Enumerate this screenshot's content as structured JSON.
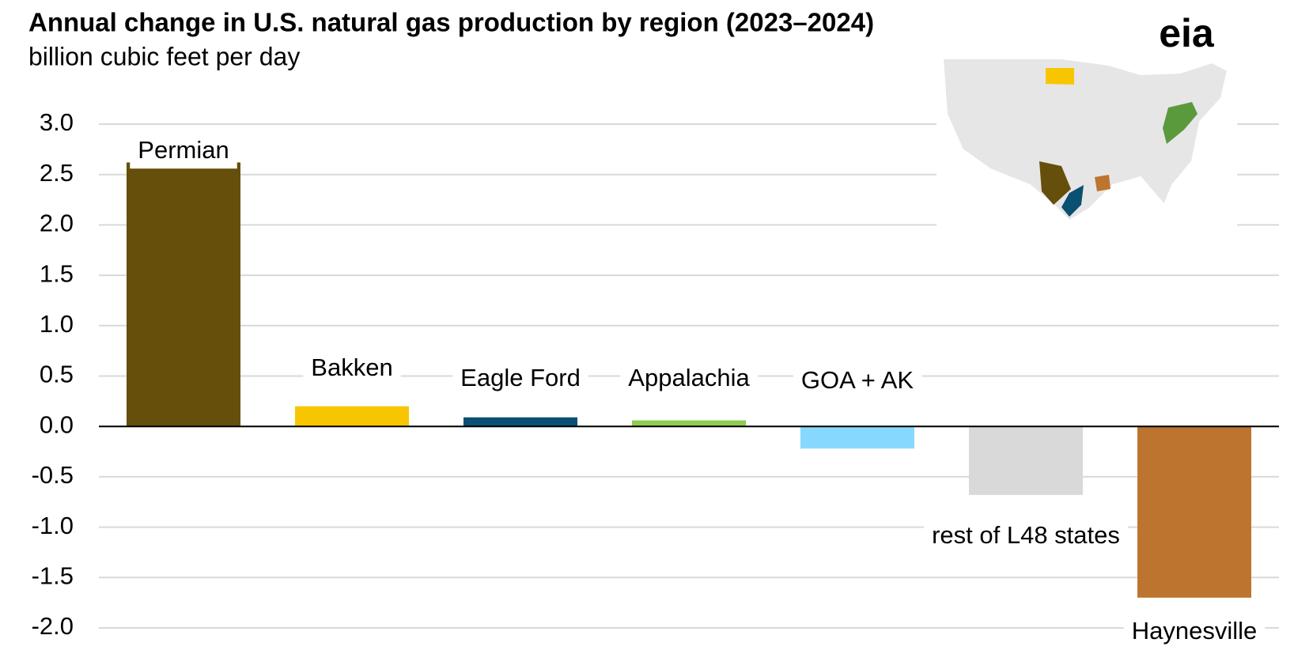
{
  "chart_data": {
    "type": "bar",
    "title": "Annual change in U.S. natural gas production by region (2023–2024)",
    "subtitle": "billion cubic feet per day",
    "logo": "eia",
    "categories": [
      "Permian",
      "Bakken",
      "Eagle Ford",
      "Appalachia",
      "GOA + AK",
      "rest of L48 states",
      "Haynesville"
    ],
    "values": [
      2.62,
      0.2,
      0.09,
      0.06,
      -0.22,
      -0.68,
      -1.7
    ],
    "colors": [
      "#654f0a",
      "#f8c600",
      "#0b4f73",
      "#8fcb51",
      "#87d8ff",
      "#d9d9d9",
      "#bd742f"
    ],
    "ylim": [
      -2.0,
      3.0
    ],
    "yticks": [
      {
        "value": 3.0,
        "label": "3.0"
      },
      {
        "value": 2.5,
        "label": "2.5"
      },
      {
        "value": 2.0,
        "label": "2.0"
      },
      {
        "value": 1.5,
        "label": "1.5"
      },
      {
        "value": 1.0,
        "label": "1.0"
      },
      {
        "value": 0.5,
        "label": "0.5"
      },
      {
        "value": 0.0,
        "label": "0.0"
      },
      {
        "value": -0.5,
        "label": "-0.5"
      },
      {
        "value": -1.0,
        "label": "-1.0"
      },
      {
        "value": -1.5,
        "label": "-1.5"
      },
      {
        "value": -2.0,
        "label": "-2.0"
      }
    ],
    "grid": true
  }
}
